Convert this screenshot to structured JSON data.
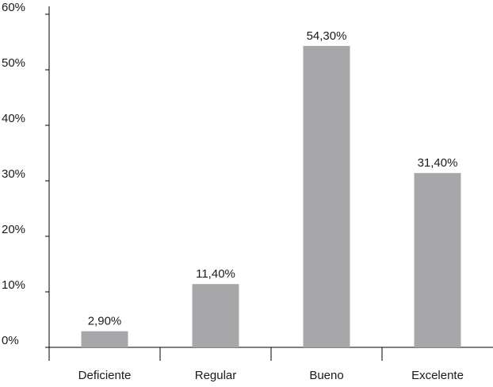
{
  "chart_data": {
    "type": "bar",
    "categories": [
      "Deficiente",
      "Regular",
      "Bueno",
      "Excelente"
    ],
    "values": [
      2.9,
      11.4,
      54.3,
      31.4
    ],
    "value_labels": [
      "2,90%",
      "11,40%",
      "54,30%",
      "31,40%"
    ],
    "title": "",
    "xlabel": "",
    "ylabel": "",
    "ylim": [
      0,
      60
    ],
    "y_ticks": [
      0,
      10,
      20,
      30,
      40,
      50,
      60
    ],
    "y_tick_labels": [
      "0%",
      "10%",
      "20%",
      "30%",
      "40%",
      "50%",
      "60%"
    ],
    "grid": false,
    "legend": "none",
    "colors": {
      "bar": "#a7a7aa",
      "axis": "#000000",
      "text": "#1a1a1a"
    }
  }
}
